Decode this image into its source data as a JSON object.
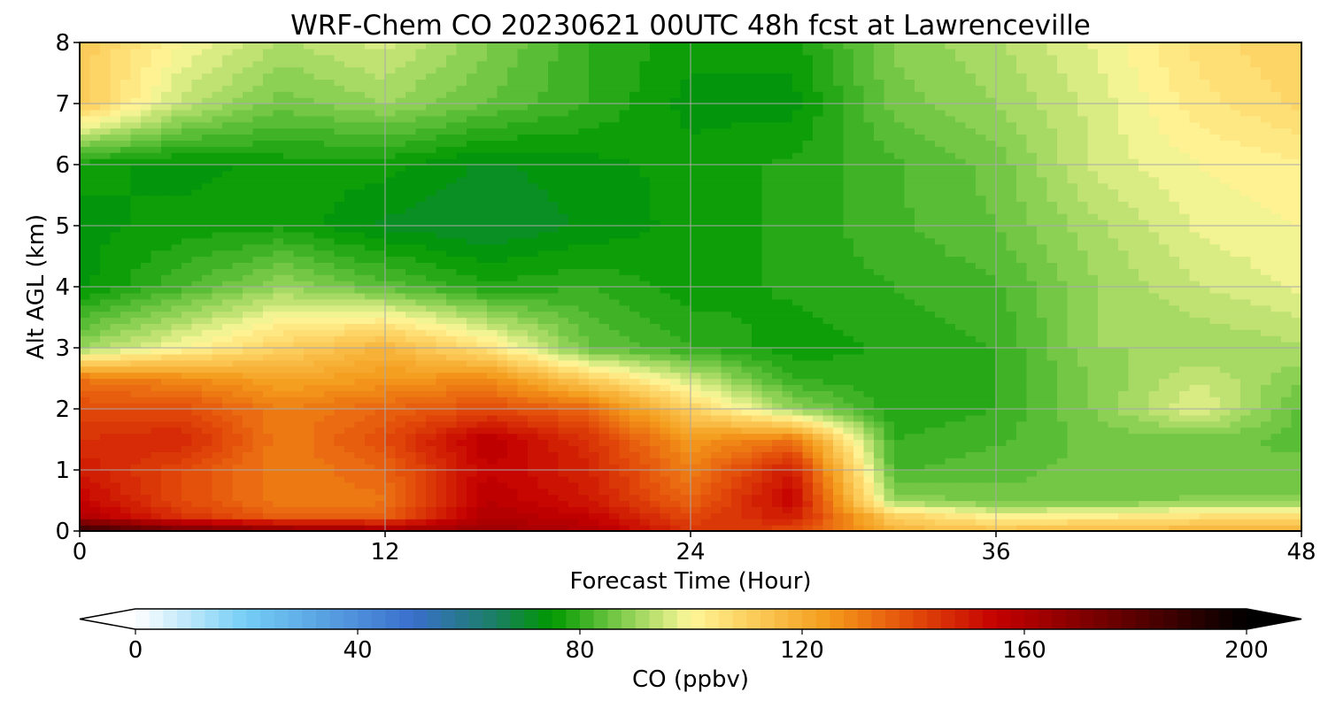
{
  "chart_data": {
    "type": "heatmap",
    "title": "WRF-Chem CO  20230621 00UTC 48h fcst at Lawrenceville",
    "xlabel": "Forecast Time (Hour)",
    "ylabel": "Alt AGL (km)",
    "xlim": [
      0,
      48
    ],
    "ylim": [
      0,
      8
    ],
    "x_ticks": [
      0,
      12,
      24,
      36,
      48
    ],
    "y_ticks": [
      0,
      1,
      2,
      3,
      4,
      5,
      6,
      7,
      8
    ],
    "x_tick_labels": [
      "0",
      "12",
      "24",
      "36",
      "48"
    ],
    "y_tick_labels": [
      "0",
      "1",
      "2",
      "3",
      "4",
      "5",
      "6",
      "7",
      "8"
    ],
    "grid": true,
    "x": [
      0,
      4,
      8,
      12,
      16,
      20,
      24,
      28,
      32,
      36,
      40,
      44,
      48
    ],
    "y": [
      0,
      0.25,
      0.5,
      1,
      1.5,
      2,
      2.5,
      3,
      4,
      5,
      6,
      7,
      8
    ],
    "z": [
      [
        190,
        175,
        170,
        165,
        165,
        160,
        145,
        140,
        118,
        115,
        117,
        118,
        118
      ],
      [
        160,
        145,
        135,
        135,
        160,
        155,
        140,
        150,
        110,
        100,
        102,
        105,
        106
      ],
      [
        155,
        140,
        130,
        132,
        158,
        150,
        135,
        155,
        90,
        86,
        86,
        88,
        88
      ],
      [
        150,
        140,
        130,
        135,
        155,
        148,
        130,
        150,
        82,
        84,
        86,
        86,
        86
      ],
      [
        145,
        148,
        130,
        140,
        158,
        145,
        125,
        132,
        80,
        82,
        86,
        86,
        84
      ],
      [
        140,
        140,
        130,
        135,
        140,
        135,
        110,
        90,
        78,
        80,
        88,
        98,
        84
      ],
      [
        132,
        128,
        122,
        125,
        128,
        110,
        95,
        80,
        78,
        80,
        88,
        95,
        88
      ],
      [
        90,
        100,
        110,
        118,
        105,
        85,
        80,
        76,
        78,
        80,
        90,
        90,
        92
      ],
      [
        74,
        82,
        90,
        84,
        78,
        80,
        76,
        78,
        80,
        82,
        90,
        95,
        98
      ],
      [
        74,
        76,
        77,
        72,
        70,
        73,
        76,
        78,
        82,
        85,
        92,
        98,
        100
      ],
      [
        76,
        74,
        76,
        76,
        72,
        74,
        76,
        78,
        82,
        86,
        96,
        100,
        102
      ],
      [
        112,
        94,
        86,
        90,
        85,
        80,
        74,
        74,
        86,
        90,
        96,
        104,
        108
      ],
      [
        112,
        100,
        92,
        96,
        88,
        80,
        76,
        76,
        88,
        92,
        98,
        106,
        110
      ]
    ],
    "colorbar": {
      "label": "CO  (ppbv)",
      "min": 0,
      "max": 200,
      "ticks": [
        0,
        40,
        80,
        120,
        160,
        200
      ],
      "tick_labels": [
        "0",
        "40",
        "80",
        "120",
        "160",
        "200"
      ],
      "extend": "both",
      "colormap_stops": [
        [
          0,
          "#ffffff"
        ],
        [
          20,
          "#74cdf5"
        ],
        [
          50,
          "#3a6fcc"
        ],
        [
          65,
          "#1a7f62"
        ],
        [
          75,
          "#009900"
        ],
        [
          90,
          "#99d65c"
        ],
        [
          100,
          "#fff79a"
        ],
        [
          110,
          "#fdd060"
        ],
        [
          125,
          "#f49a1a"
        ],
        [
          140,
          "#e24a0a"
        ],
        [
          155,
          "#c40000"
        ],
        [
          180,
          "#5a0000"
        ],
        [
          200,
          "#000000"
        ]
      ]
    }
  }
}
